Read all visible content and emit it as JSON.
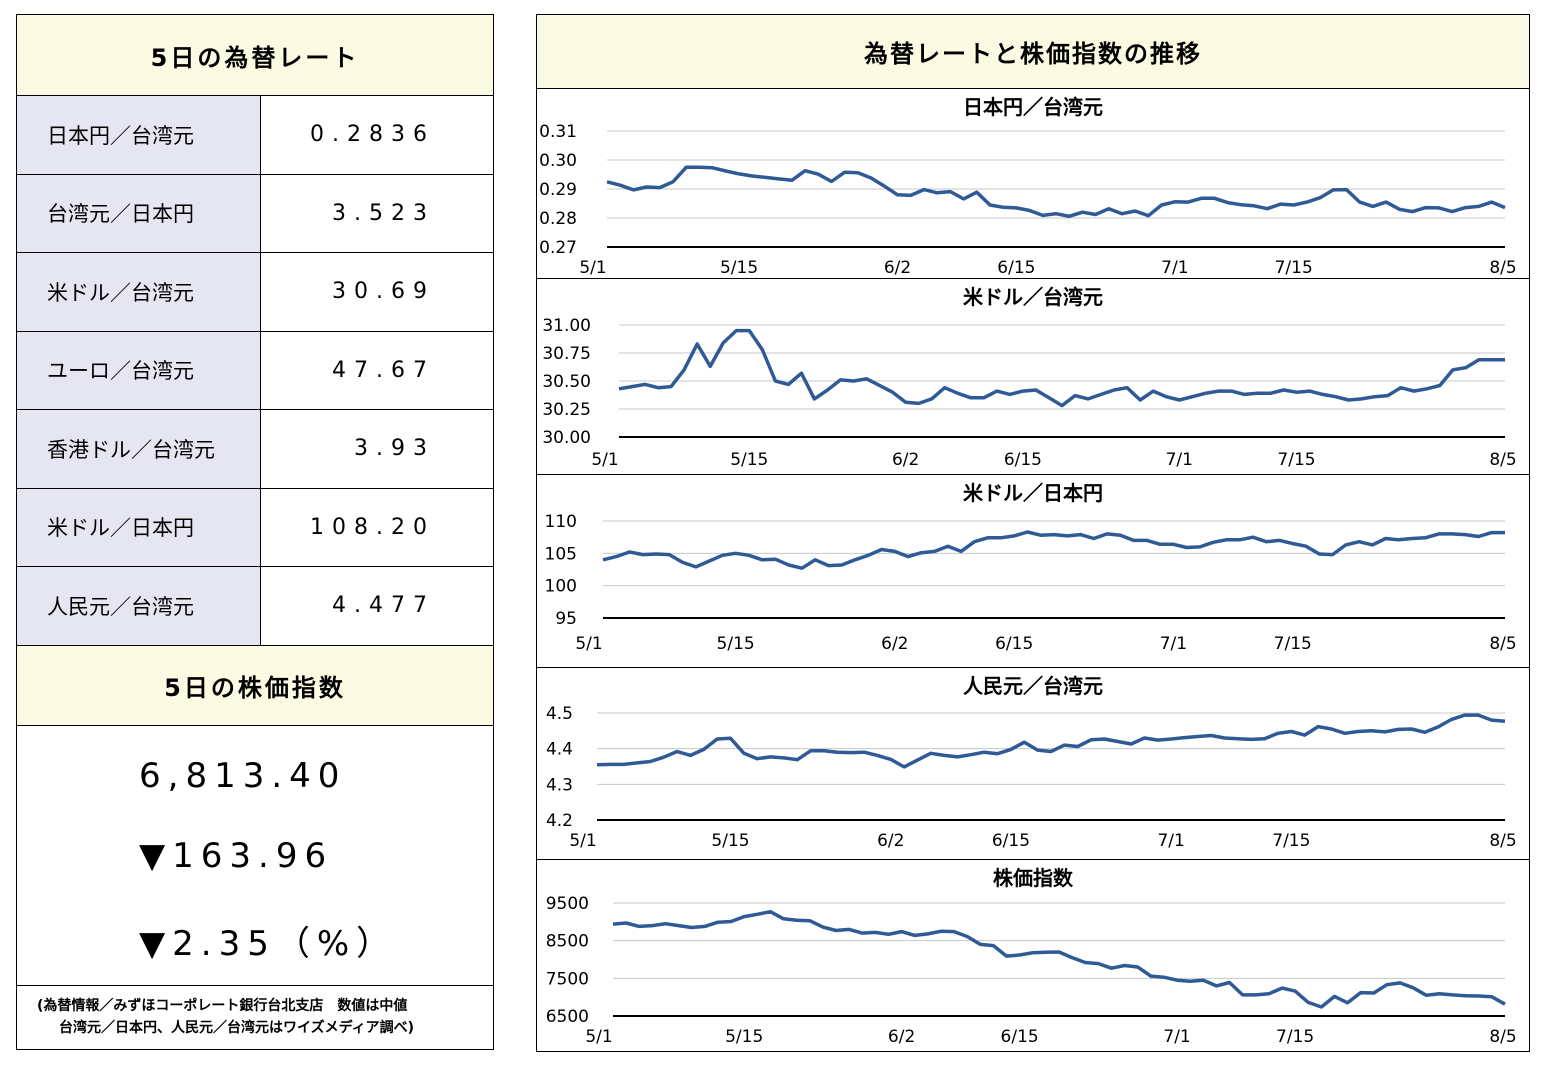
{
  "rates": {
    "title": "5日の為替レート",
    "rows": [
      {
        "label": "日本円／台湾元",
        "value": "0.2836"
      },
      {
        "label": "台湾元／日本円",
        "value": "3.523"
      },
      {
        "label": "米ドル／台湾元",
        "value": "30.69"
      },
      {
        "label": "ユーロ／台湾元",
        "value": "47.67"
      },
      {
        "label": "香港ドル／台湾元",
        "value": "3.93"
      },
      {
        "label": "米ドル／日本円",
        "value": "108.20"
      },
      {
        "label": "人民元／台湾元",
        "value": "4.477"
      }
    ]
  },
  "stock": {
    "title": "5日の株価指数",
    "value": "6,813.40",
    "change": "▼163.96",
    "percent": "▼2.35（%）"
  },
  "footnote": {
    "line1": "(為替情報／みずほコーポレート銀行台北支店　数値は中値",
    "line2": "台湾元／日本円、人民元／台湾元はワイズメディア調べ)"
  },
  "charts_title": "為替レートと株価指数の推移",
  "chart_data": [
    {
      "type": "line",
      "title": "日本円／台湾元",
      "ylim": [
        0.27,
        0.31
      ],
      "yticks": [
        "0.27",
        "0.28",
        "0.29",
        "0.30",
        "0.31"
      ],
      "grid": true,
      "xticks": [
        {
          "label": "5/1",
          "i": 0
        },
        {
          "label": "5/15",
          "i": 10
        },
        {
          "label": "6/2",
          "i": 22
        },
        {
          "label": "6/15",
          "i": 31
        },
        {
          "label": "7/1",
          "i": 43
        },
        {
          "label": "7/15",
          "i": 52
        },
        {
          "label": "8/5",
          "i": 66
        }
      ],
      "series": [
        {
          "color": "#2f5a95",
          "values": [
            0.2925,
            0.2913,
            0.2897,
            0.2907,
            0.2905,
            0.2925,
            0.2975,
            0.2975,
            0.2973,
            0.2962,
            0.2952,
            0.2945,
            0.294,
            0.2935,
            0.293,
            0.2963,
            0.2951,
            0.2926,
            0.2958,
            0.2956,
            0.2938,
            0.291,
            0.288,
            0.2878,
            0.2898,
            0.2887,
            0.2891,
            0.2866,
            0.2889,
            0.2845,
            0.2837,
            0.2835,
            0.2826,
            0.2809,
            0.2815,
            0.2806,
            0.282,
            0.2812,
            0.2832,
            0.2815,
            0.2824,
            0.2808,
            0.2845,
            0.2856,
            0.2855,
            0.2868,
            0.2868,
            0.2853,
            0.2846,
            0.2842,
            0.2832,
            0.2848,
            0.2845,
            0.2855,
            0.287,
            0.2897,
            0.2898,
            0.2855,
            0.284,
            0.2855,
            0.283,
            0.2822,
            0.2836,
            0.2835,
            0.2822,
            0.2836,
            0.284,
            0.2855,
            0.2836
          ]
        }
      ]
    },
    {
      "type": "line",
      "title": "米ドル／台湾元",
      "ylim": [
        30.0,
        31.0
      ],
      "yticks": [
        "30.00",
        "30.25",
        "30.50",
        "30.75",
        "31.00"
      ],
      "grid": true,
      "xticks": [
        {
          "label": "5/1",
          "i": 0
        },
        {
          "label": "5/15",
          "i": 10
        },
        {
          "label": "6/2",
          "i": 22
        },
        {
          "label": "6/15",
          "i": 31
        },
        {
          "label": "7/1",
          "i": 43
        },
        {
          "label": "7/15",
          "i": 52
        },
        {
          "label": "8/5",
          "i": 66
        }
      ],
      "series": [
        {
          "color": "#2f5a95",
          "values": [
            30.43,
            30.45,
            30.47,
            30.44,
            30.45,
            30.6,
            30.83,
            30.63,
            30.84,
            30.95,
            30.95,
            30.78,
            30.5,
            30.47,
            30.57,
            30.34,
            30.42,
            30.51,
            30.5,
            30.52,
            30.46,
            30.4,
            30.31,
            30.3,
            30.34,
            30.44,
            30.39,
            30.35,
            30.35,
            30.41,
            30.38,
            30.41,
            30.42,
            30.35,
            30.28,
            30.37,
            30.34,
            30.38,
            30.42,
            30.44,
            30.33,
            30.41,
            30.36,
            30.33,
            30.36,
            30.39,
            30.41,
            30.41,
            30.38,
            30.39,
            30.39,
            30.42,
            30.4,
            30.41,
            30.38,
            30.36,
            30.33,
            30.34,
            30.36,
            30.37,
            30.44,
            30.41,
            30.43,
            30.46,
            30.6,
            30.62,
            30.69,
            30.69,
            30.69
          ]
        }
      ]
    },
    {
      "type": "line",
      "title": "米ドル／日本円",
      "ylim": [
        95,
        110
      ],
      "yticks": [
        "95",
        "100",
        "105",
        "110"
      ],
      "grid": true,
      "xticks": [
        {
          "label": "5/1",
          "i": 0
        },
        {
          "label": "5/15",
          "i": 10
        },
        {
          "label": "6/2",
          "i": 22
        },
        {
          "label": "6/15",
          "i": 31
        },
        {
          "label": "7/1",
          "i": 43
        },
        {
          "label": "7/15",
          "i": 52
        },
        {
          "label": "8/5",
          "i": 66
        }
      ],
      "series": [
        {
          "color": "#2f5a95",
          "values": [
            104.0,
            104.5,
            105.2,
            104.8,
            104.9,
            104.8,
            103.6,
            102.9,
            103.8,
            104.7,
            105.0,
            104.7,
            104.0,
            104.1,
            103.2,
            102.7,
            104.0,
            103.1,
            103.2,
            104.0,
            104.7,
            105.6,
            105.3,
            104.5,
            105.1,
            105.3,
            106.1,
            105.3,
            106.8,
            107.4,
            107.4,
            107.7,
            108.3,
            107.8,
            107.9,
            107.7,
            107.9,
            107.3,
            108.0,
            107.8,
            107.0,
            107.0,
            106.4,
            106.4,
            105.9,
            106.0,
            106.7,
            107.1,
            107.1,
            107.5,
            106.8,
            107.0,
            106.5,
            106.1,
            104.9,
            104.8,
            106.3,
            106.8,
            106.3,
            107.3,
            107.1,
            107.3,
            107.4,
            108.0,
            108.0,
            107.9,
            107.6,
            108.2,
            108.2
          ]
        }
      ]
    },
    {
      "type": "line",
      "title": "人民元／台湾元",
      "ylim": [
        4.2,
        4.5
      ],
      "yticks": [
        "4.2",
        "4.3",
        "4.4",
        "4.5"
      ],
      "grid": true,
      "xticks": [
        {
          "label": "5/1",
          "i": 0
        },
        {
          "label": "5/15",
          "i": 10
        },
        {
          "label": "6/2",
          "i": 22
        },
        {
          "label": "6/15",
          "i": 31
        },
        {
          "label": "7/1",
          "i": 43
        },
        {
          "label": "7/15",
          "i": 52
        },
        {
          "label": "8/5",
          "i": 66
        }
      ],
      "series": [
        {
          "color": "#2f5a95",
          "values": [
            4.355,
            4.356,
            4.356,
            4.36,
            4.364,
            4.376,
            4.392,
            4.381,
            4.398,
            4.427,
            4.429,
            4.387,
            4.372,
            4.377,
            4.374,
            4.369,
            4.394,
            4.394,
            4.39,
            4.389,
            4.39,
            4.381,
            4.37,
            4.349,
            4.368,
            4.387,
            4.381,
            4.377,
            4.383,
            4.39,
            4.386,
            4.398,
            4.418,
            4.396,
            4.392,
            4.41,
            4.406,
            4.425,
            4.427,
            4.42,
            4.413,
            4.43,
            4.424,
            4.427,
            4.431,
            4.434,
            4.437,
            4.43,
            4.428,
            4.426,
            4.428,
            4.443,
            4.448,
            4.438,
            4.462,
            4.455,
            4.443,
            4.448,
            4.45,
            4.447,
            4.454,
            4.455,
            4.446,
            4.461,
            4.482,
            4.494,
            4.494,
            4.48,
            4.477
          ]
        }
      ]
    },
    {
      "type": "line",
      "title": "株価指数",
      "ylim": [
        6500,
        9500
      ],
      "yticks": [
        "6500",
        "7500",
        "8500",
        "9500"
      ],
      "grid": true,
      "xticks": [
        {
          "label": "5/1",
          "i": 0
        },
        {
          "label": "5/15",
          "i": 10
        },
        {
          "label": "6/2",
          "i": 22
        },
        {
          "label": "6/15",
          "i": 31
        },
        {
          "label": "7/1",
          "i": 43
        },
        {
          "label": "7/15",
          "i": 52
        },
        {
          "label": "8/5",
          "i": 66
        }
      ],
      "series": [
        {
          "color": "#2f5a95",
          "values": [
            8940,
            8970,
            8880,
            8900,
            8950,
            8900,
            8850,
            8880,
            8990,
            9010,
            9140,
            9200,
            9270,
            9080,
            9040,
            9030,
            8860,
            8770,
            8800,
            8700,
            8720,
            8670,
            8740,
            8640,
            8680,
            8750,
            8740,
            8610,
            8400,
            8370,
            8090,
            8120,
            8180,
            8190,
            8200,
            8050,
            7920,
            7890,
            7770,
            7840,
            7800,
            7560,
            7530,
            7450,
            7420,
            7450,
            7300,
            7390,
            7060,
            7060,
            7090,
            7240,
            7160,
            6860,
            6740,
            7020,
            6850,
            7120,
            7110,
            7330,
            7380,
            7250,
            7050,
            7090,
            7060,
            7040,
            7030,
            7010,
            6813
          ]
        }
      ]
    }
  ]
}
